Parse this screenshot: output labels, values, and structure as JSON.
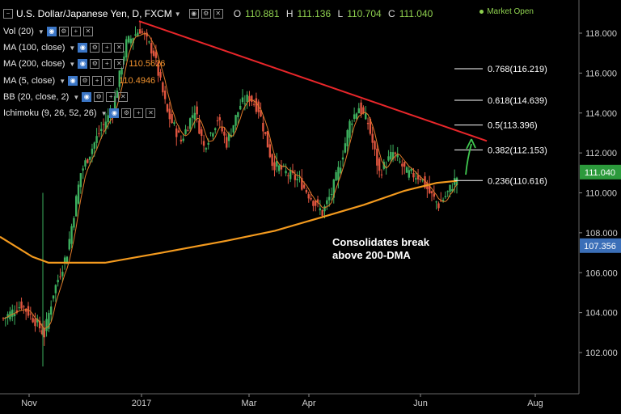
{
  "header": {
    "title": "U.S. Dollar/Japanese Yen, D, FXCM",
    "ohlc": {
      "o_label": "O",
      "o": "110.881",
      "h_label": "H",
      "h": "111.136",
      "l_label": "L",
      "l": "110.704",
      "c_label": "C",
      "c": "111.040"
    },
    "market_status": "Market Open"
  },
  "indicators": [
    {
      "label": "Vol (20)",
      "value": "",
      "color": "#ffffff"
    },
    {
      "label": "MA (100, close)",
      "value": "",
      "color": "#ffffff"
    },
    {
      "label": "MA (200, close)",
      "value": "110.5626",
      "color": "#f0922e"
    },
    {
      "label": "MA (5, close)",
      "value": "110.4946",
      "color": "#f0922e"
    },
    {
      "label": "BB (20, close, 2)",
      "value": "",
      "color": "#ffffff"
    },
    {
      "label": "Ichimoku (9, 26, 52, 26)",
      "value": "",
      "color": "#ffffff"
    }
  ],
  "chart_data": {
    "type": "candlestick",
    "y_axis": {
      "range": [
        100.3,
        119.6
      ],
      "ticks": [
        "118.000",
        "116.000",
        "114.000",
        "112.000",
        "110.000",
        "108.000",
        "106.000",
        "104.000",
        "102.000"
      ],
      "current_price": "111.040",
      "ma_value": "107.356"
    },
    "x_axis": {
      "ticks": [
        "Nov",
        "2017",
        "Mar",
        "Apr",
        "Jun",
        "Aug"
      ]
    },
    "fibonacci": [
      {
        "label": "0.768(116.219)",
        "level": 116.219
      },
      {
        "label": "0.618(114.639)",
        "level": 114.639
      },
      {
        "label": "0.5(113.396)",
        "level": 113.396
      },
      {
        "label": "0.382(112.153)",
        "level": 112.153
      },
      {
        "label": "0.236(110.616)",
        "level": 110.616
      }
    ],
    "annotation": {
      "line1": "Consolidates break",
      "line2": "above 200-DMA"
    },
    "colors": {
      "up": "#3db05e",
      "down": "#e0553f",
      "trendline": "#e8262a",
      "ma200": "#f39a1e",
      "ma5": "#e07a2a",
      "arrow": "#40c850",
      "price_tag": "#2c9a3c",
      "ma_tag": "#3b6fb8"
    }
  }
}
